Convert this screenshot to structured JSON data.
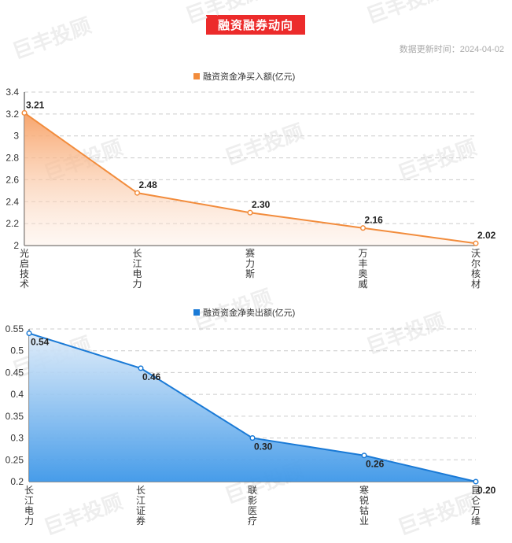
{
  "page": {
    "title": "融资融券动向",
    "update_time": "数据更新时间：2024-04-02",
    "watermark": "巨丰投顾"
  },
  "chart_data": [
    {
      "type": "area",
      "legend": "融资资金净买入额(亿元)",
      "color": "#f28c3c",
      "categories": [
        "光启技术",
        "长江电力",
        "赛力斯",
        "万丰奥威",
        "沃尔核材"
      ],
      "values": [
        3.21,
        2.48,
        2.3,
        2.16,
        2.02
      ],
      "ylim": [
        2,
        3.4
      ],
      "yticks": [
        2,
        2.2,
        2.4,
        2.6,
        2.8,
        3,
        3.2,
        3.4
      ],
      "value_labels": [
        "3.21",
        "2.48",
        "2.30",
        "2.16",
        "2.02"
      ],
      "grid": true
    },
    {
      "type": "area",
      "legend": "融资资金净卖出额(亿元)",
      "color": "#1a7ad6",
      "categories": [
        "长江电力",
        "长江证券",
        "联影医疗",
        "寒锐钴业",
        "昆仑万维"
      ],
      "values": [
        0.54,
        0.46,
        0.3,
        0.26,
        0.2
      ],
      "ylim": [
        0.2,
        0.55
      ],
      "yticks": [
        0.2,
        0.25,
        0.3,
        0.35,
        0.4,
        0.45,
        0.5,
        0.55
      ],
      "value_labels": [
        "0.54",
        "0.46",
        "0.30",
        "0.26",
        "0.20"
      ],
      "grid": true
    }
  ]
}
